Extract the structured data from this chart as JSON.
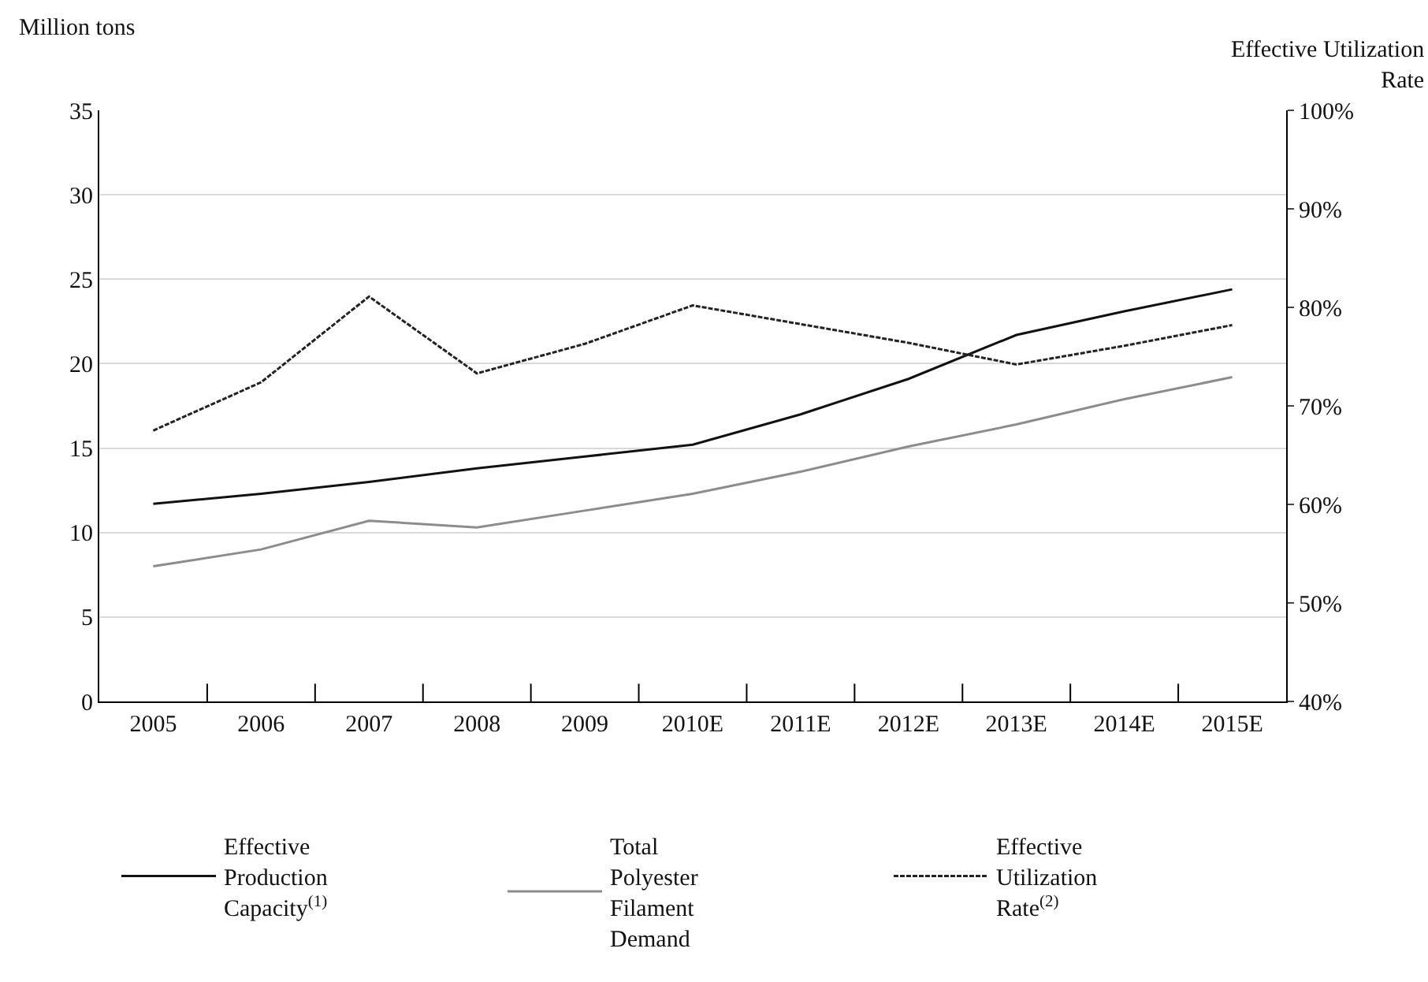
{
  "chart_data": {
    "type": "line",
    "ylabel": "Million tons",
    "y2label": "Effective Utilization Rate",
    "categories": [
      "2005",
      "2006",
      "2007",
      "2008",
      "2009",
      "2010E",
      "2011E",
      "2012E",
      "2013E",
      "2014E",
      "2015E"
    ],
    "series": [
      {
        "name": "Effective Production Capacity$^{(1)}$",
        "color": "#111111",
        "line_style": "solid",
        "values": [
          11.7,
          12.3,
          13.0,
          13.8,
          14.5,
          15.2,
          17.0,
          19.1,
          21.7,
          23.1,
          24.4
        ]
      },
      {
        "name": "Total Polyester Filament Demand",
        "color": "#8c8c8c",
        "line_style": "solid",
        "values": [
          8.0,
          9.0,
          10.7,
          10.3,
          11.3,
          12.3,
          13.6,
          15.1,
          16.4,
          17.9,
          19.2
        ]
      },
      {
        "name": "Effective Utilization Rate$^{(2)}$",
        "color": "#222222",
        "line_style": "dashed",
        "axis": "y2",
        "values": [
          67.5,
          72.4,
          81.1,
          73.3,
          76.3,
          80.2,
          78.3,
          76.4,
          74.2,
          76.1,
          78.2
        ]
      }
    ],
    "ylim": [
      0,
      35
    ],
    "yticks": [
      0,
      5,
      10,
      15,
      20,
      25,
      30,
      35
    ],
    "y2lim": [
      40,
      100
    ],
    "y2ticks": [
      {
        "value": 40,
        "label": "40%"
      },
      {
        "value": 50,
        "label": "50%"
      },
      {
        "value": 60,
        "label": "60%"
      },
      {
        "value": 70,
        "label": "70%"
      },
      {
        "value": 80,
        "label": "80%"
      },
      {
        "value": 90,
        "label": "90%"
      },
      {
        "value": 100,
        "label": "100%"
      }
    ],
    "grid": "y",
    "legend": "bottom",
    "marker": "none"
  }
}
